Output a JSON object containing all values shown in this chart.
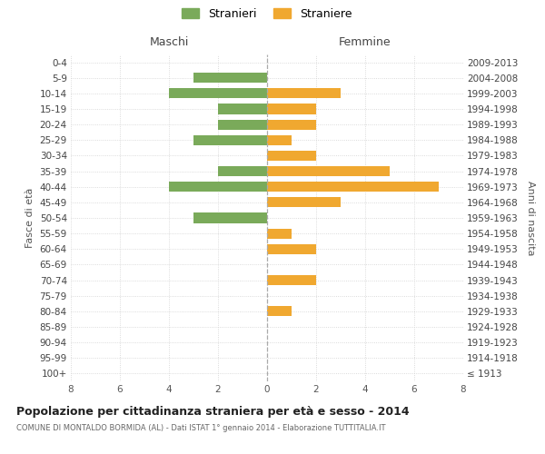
{
  "age_groups": [
    "100+",
    "95-99",
    "90-94",
    "85-89",
    "80-84",
    "75-79",
    "70-74",
    "65-69",
    "60-64",
    "55-59",
    "50-54",
    "45-49",
    "40-44",
    "35-39",
    "30-34",
    "25-29",
    "20-24",
    "15-19",
    "10-14",
    "5-9",
    "0-4"
  ],
  "birth_years": [
    "≤ 1913",
    "1914-1918",
    "1919-1923",
    "1924-1928",
    "1929-1933",
    "1934-1938",
    "1939-1943",
    "1944-1948",
    "1949-1953",
    "1954-1958",
    "1959-1963",
    "1964-1968",
    "1969-1973",
    "1974-1978",
    "1979-1983",
    "1984-1988",
    "1989-1993",
    "1994-1998",
    "1999-2003",
    "2004-2008",
    "2009-2013"
  ],
  "maschi": [
    0,
    0,
    0,
    0,
    0,
    0,
    0,
    0,
    0,
    0,
    3,
    0,
    4,
    2,
    0,
    3,
    2,
    2,
    4,
    3,
    0
  ],
  "femmine": [
    0,
    0,
    0,
    0,
    1,
    0,
    2,
    0,
    2,
    1,
    0,
    3,
    7,
    5,
    2,
    1,
    2,
    2,
    3,
    0,
    0
  ],
  "color_maschi": "#7aaa5a",
  "color_femmine": "#f0a830",
  "xlim": 8,
  "title": "Popolazione per cittadinanza straniera per età e sesso - 2014",
  "subtitle": "COMUNE DI MONTALDO BORMIDA (AL) - Dati ISTAT 1° gennaio 2014 - Elaborazione TUTTITALIA.IT",
  "ylabel_left": "Fasce di età",
  "ylabel_right": "Anni di nascita",
  "label_maschi": "Maschi",
  "label_femmine": "Femmine",
  "legend_maschi": "Stranieri",
  "legend_femmine": "Straniere",
  "background_color": "#ffffff",
  "grid_color": "#d0d0d0"
}
